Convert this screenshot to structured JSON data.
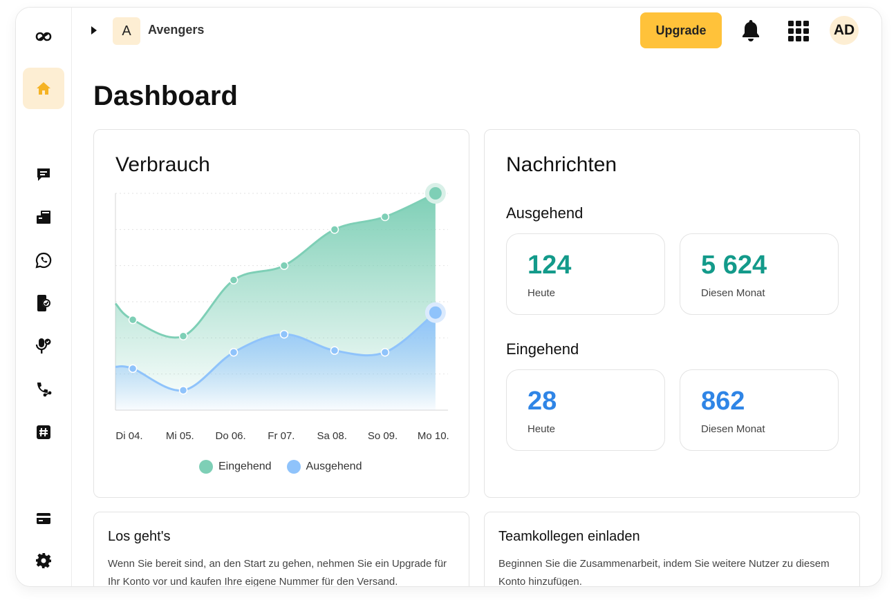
{
  "workspace": {
    "initial": "A",
    "name": "Avengers"
  },
  "header": {
    "upgrade_label": "Upgrade",
    "user_initials": "AD"
  },
  "page": {
    "title": "Dashboard"
  },
  "sidebar": {
    "items": [
      {
        "icon": "logo-icon"
      },
      {
        "icon": "home-icon",
        "active": true
      },
      {
        "icon": "chat-icon"
      },
      {
        "icon": "inbox-icon"
      },
      {
        "icon": "whatsapp-icon"
      },
      {
        "icon": "phone-verify-icon"
      },
      {
        "icon": "voice-icon"
      },
      {
        "icon": "call-forward-icon"
      },
      {
        "icon": "hashtag-icon"
      },
      {
        "icon": "billing-icon"
      },
      {
        "icon": "settings-icon"
      }
    ]
  },
  "usage": {
    "title": "Verbrauch",
    "chart_data": {
      "type": "area",
      "categories": [
        "Di 04.",
        "Mi 05.",
        "Do 06.",
        "Fr 07.",
        "Sa 08.",
        "So 09.",
        "Mo 10."
      ],
      "x_positions": [
        0,
        1,
        2,
        3,
        4,
        5,
        6,
        7,
        8,
        9
      ],
      "ylim": [
        0,
        6
      ],
      "grid": true,
      "legend_position": "bottom",
      "series": [
        {
          "name": "Eingehend",
          "color": "#7ecfb6",
          "values": [
            2.95,
            2.5,
            2.05,
            3.6,
            4.0,
            5.0,
            5.35,
            6.0
          ],
          "x": [
            0,
            0.33,
            1.29,
            2.25,
            3.21,
            4.17,
            5.13,
            6.09
          ]
        },
        {
          "name": "Ausgehend",
          "color": "#8fc3fb",
          "values": [
            1.2,
            1.15,
            0.55,
            1.6,
            2.1,
            1.65,
            1.6,
            2.7
          ],
          "x": [
            0,
            0.33,
            1.29,
            2.25,
            3.21,
            4.17,
            5.13,
            6.09
          ]
        }
      ]
    }
  },
  "messages": {
    "title": "Nachrichten",
    "outgoing": {
      "title": "Ausgehend",
      "today_value": "124",
      "today_label": "Heute",
      "month_value": "5 624",
      "month_label": "Diesen Monat",
      "color": "#139a8a"
    },
    "incoming": {
      "title": "Eingehend",
      "today_value": "28",
      "today_label": "Heute",
      "month_value": "862",
      "month_label": "Diesen Monat",
      "color": "#2f85e6"
    }
  },
  "cards": {
    "start": {
      "title": "Los geht's",
      "text": "Wenn Sie bereit sind, an den Start zu gehen, nehmen Sie ein Upgrade für Ihr Konto vor und kaufen Ihre eigene Nummer für den Versand."
    },
    "invite": {
      "title": "Teamkollegen einladen",
      "text": "Beginnen Sie die Zusammenarbeit, indem Sie weitere Nutzer zu diesem Konto hinzufügen."
    }
  }
}
